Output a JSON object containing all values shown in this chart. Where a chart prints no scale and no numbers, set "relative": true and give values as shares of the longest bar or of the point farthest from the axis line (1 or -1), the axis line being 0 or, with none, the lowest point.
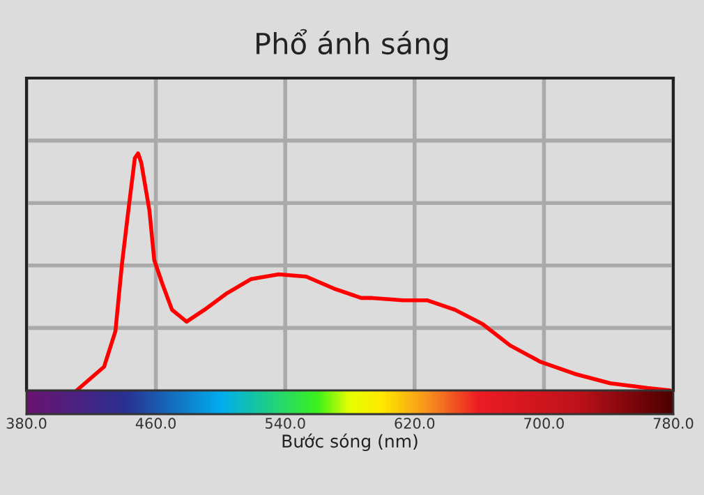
{
  "chart_data": {
    "type": "line",
    "title": "Phổ ánh sáng",
    "xlabel": "Bước sóng (nm)",
    "relative": true,
    "xlim": [
      380,
      780
    ],
    "xticks": [
      {
        "value": 380,
        "label": "380.0"
      },
      {
        "value": 460,
        "label": "460.0"
      },
      {
        "value": 540,
        "label": "540.0"
      },
      {
        "value": 620,
        "label": "620.0"
      },
      {
        "value": 700,
        "label": "700.0"
      },
      {
        "value": 780,
        "label": "780.0"
      }
    ],
    "tick_labels": "x",
    "grid": true,
    "legend": false,
    "marker": "none",
    "line_style": "solid",
    "x": [
      411,
      428,
      435,
      439,
      443,
      447,
      449,
      451,
      456,
      459,
      464,
      470,
      479,
      490,
      504,
      519,
      536,
      553,
      570,
      587,
      594,
      613,
      628,
      645,
      662,
      679,
      698,
      719,
      741,
      764,
      778
    ],
    "series": [
      {
        "color": "#ff0000",
        "values": [
          0,
          0.1,
          0.25,
          0.53,
          0.76,
          0.98,
          1.0,
          0.96,
          0.76,
          0.55,
          0.45,
          0.34,
          0.29,
          0.34,
          0.41,
          0.47,
          0.49,
          0.48,
          0.43,
          0.39,
          0.39,
          0.38,
          0.38,
          0.34,
          0.28,
          0.19,
          0.12,
          0.07,
          0.03,
          0.01,
          0
        ]
      }
    ]
  }
}
